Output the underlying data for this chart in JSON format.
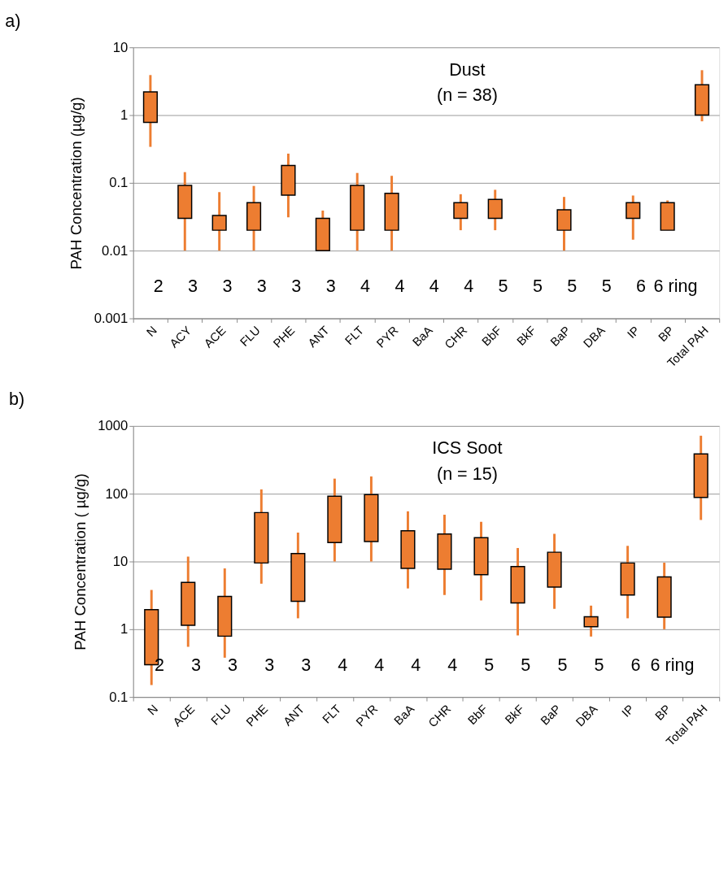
{
  "chart_data": [
    {
      "type": "bar",
      "title": "a)",
      "ylabel": "PAH Concentration (µg/g)",
      "log": true,
      "grid": "y",
      "ylim": [
        0.001,
        10
      ],
      "yticks": [
        0.001,
        0.01,
        0.1,
        1,
        10
      ],
      "color": "#ed7d31",
      "categories": [
        "N",
        "ACY",
        "ACE",
        "FLU",
        "PHE",
        "ANT",
        "FLT",
        "PYR",
        "BaA",
        "CHR",
        "BbF",
        "BkF",
        "BaP",
        "DBA",
        "IP",
        "BP",
        "Total PAH"
      ],
      "base": [
        0.78,
        0.03,
        0.02,
        0.02,
        0.066,
        0.01,
        0.02,
        0.02,
        null,
        0.03,
        0.03,
        null,
        0.02,
        null,
        0.03,
        0.02,
        1.0
      ],
      "values": [
        1.42,
        0.062,
        0.013,
        0.031,
        0.114,
        0.02,
        0.072,
        0.05,
        null,
        0.021,
        0.027,
        null,
        0.02,
        null,
        0.021,
        0.031,
        1.8
      ],
      "errors": [
        [
          0.34,
          3.9
        ],
        [
          0.01,
          0.144
        ],
        [
          0.01,
          0.073
        ],
        [
          0.01,
          0.09
        ],
        [
          0.031,
          0.27
        ],
        [
          0.01,
          0.039
        ],
        [
          0.01,
          0.14
        ],
        [
          0.01,
          0.127
        ],
        null,
        [
          0.02,
          0.068
        ],
        [
          0.02,
          0.079
        ],
        null,
        [
          0.01,
          0.062
        ],
        null,
        [
          0.0145,
          0.065
        ],
        [
          0.02,
          0.055
        ],
        [
          0.81,
          4.6
        ]
      ],
      "annotations": [
        "Dust",
        "(n = 38)",
        "2",
        "3",
        "3",
        "3",
        "3",
        "3",
        "4",
        "4",
        "4",
        "4",
        "5",
        "5",
        "5",
        "5",
        "6",
        "6 ring"
      ]
    },
    {
      "type": "bar",
      "title": "b)",
      "ylabel": "PAH Concentration ( µg/g)",
      "log": true,
      "grid": "y",
      "ylim": [
        0.1,
        1000
      ],
      "yticks": [
        0.1,
        1,
        10,
        100,
        1000
      ],
      "color": "#ed7d31",
      "categories": [
        "N",
        "ACE",
        "FLU",
        "PHE",
        "ANT",
        "FLT",
        "PYR",
        "BaA",
        "CHR",
        "BbF",
        "BkF",
        "BaP",
        "DBA",
        "IP",
        "BP",
        "Total PAH"
      ],
      "base": [
        0.3,
        1.14,
        0.79,
        9.5,
        2.58,
        19,
        19.7,
        7.9,
        7.7,
        6.4,
        2.45,
        4.2,
        1.09,
        3.2,
        1.51,
        88
      ],
      "values": [
        1.65,
        3.76,
        2.26,
        43.2,
        10.52,
        73,
        77.3,
        20.5,
        17.7,
        16.0,
        5.95,
        9.5,
        0.44,
        6.3,
        4.39,
        298
      ],
      "errors": [
        [
          0.15,
          3.8
        ],
        [
          0.55,
          11.8
        ],
        [
          0.38,
          7.9
        ],
        [
          4.7,
          116
        ],
        [
          1.45,
          26.7
        ],
        [
          10,
          167
        ],
        [
          10,
          180
        ],
        [
          4.0,
          55
        ],
        [
          3.2,
          49
        ],
        [
          2.66,
          38.5
        ],
        [
          0.81,
          15.8
        ],
        [
          2.0,
          25.6
        ],
        [
          0.78,
          2.23
        ],
        [
          1.45,
          17
        ],
        [
          1.0,
          9.6
        ],
        [
          41,
          718
        ]
      ],
      "annotations": [
        "ICS Soot",
        "(n = 15)",
        "2",
        "3",
        "3",
        "3",
        "3",
        "4",
        "4",
        "4",
        "4",
        "5",
        "5",
        "5",
        "5",
        "6",
        "6 ring"
      ]
    }
  ]
}
